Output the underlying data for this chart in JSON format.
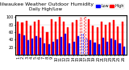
{
  "title": "Milwaukee Weather Outdoor Humidity",
  "subtitle": "Daily High/Low",
  "high_values": [
    88,
    85,
    90,
    78,
    88,
    92,
    75,
    60,
    95,
    88,
    100,
    88,
    72,
    85,
    92,
    98,
    100,
    95,
    78,
    72,
    88,
    80,
    85,
    92,
    75,
    88
  ],
  "low_values": [
    55,
    52,
    38,
    42,
    50,
    45,
    30,
    28,
    35,
    40,
    48,
    55,
    30,
    35,
    50,
    55,
    42,
    38,
    32,
    28,
    45,
    35,
    42,
    38,
    30,
    22
  ],
  "x_labels": [
    "1",
    "2",
    "3",
    "4",
    "5",
    "6",
    "7",
    "8",
    "9",
    "10",
    "11",
    "12",
    "13",
    "14",
    "15",
    "16",
    "17",
    "18",
    "19",
    "20",
    "21",
    "22",
    "23",
    "24",
    "25",
    "26"
  ],
  "y_ticks": [
    20,
    40,
    60,
    80,
    100
  ],
  "ylim": [
    0,
    105
  ],
  "bar_width": 0.4,
  "high_color": "#ff0000",
  "low_color": "#0000ff",
  "bg_color": "#ffffff",
  "plot_bg_color": "#ffffff",
  "grid_color": "#cccccc",
  "dashed_bar_indices": [
    15,
    16
  ],
  "title_fontsize": 4.5,
  "tick_fontsize": 3.5,
  "legend_fontsize": 3.5
}
